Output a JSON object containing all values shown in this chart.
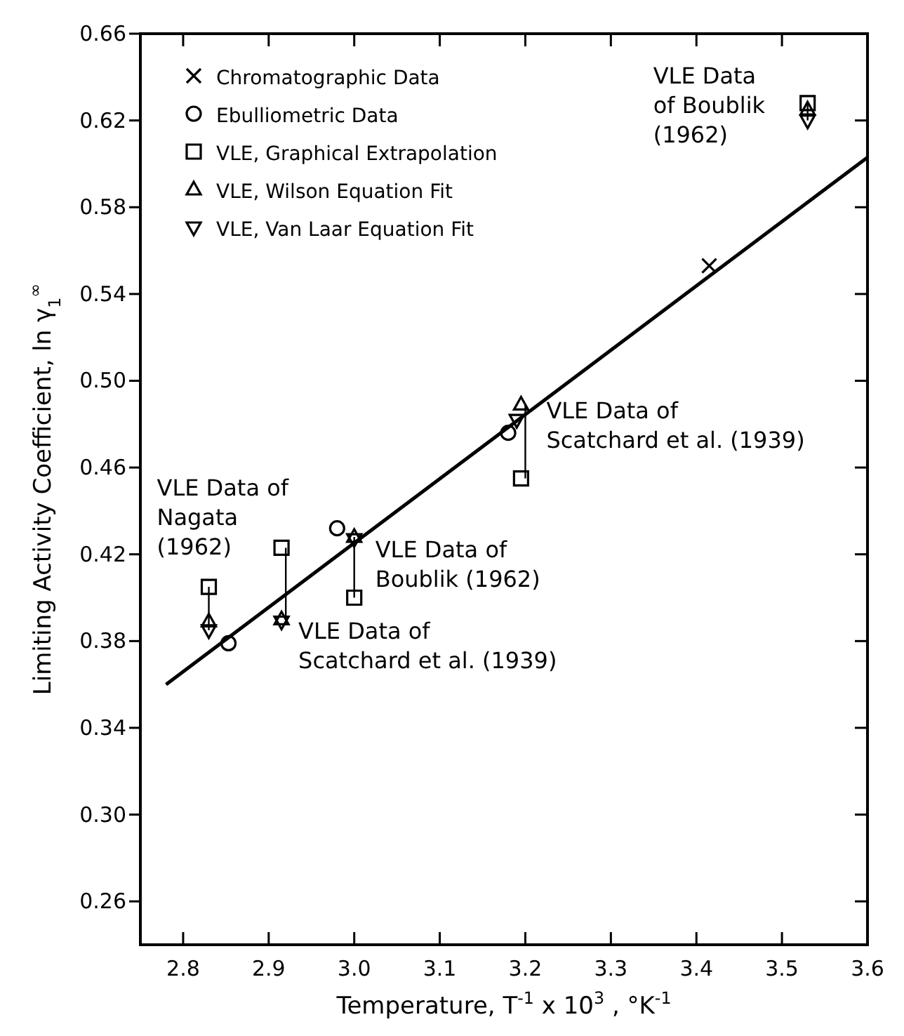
{
  "chart_data": {
    "type": "scatter",
    "xlabel": "Temperature, T$^{-1}$ x 10$^{3}$ , °K$^{-1}$",
    "ylabel": "Limiting Activity Coefficient, ln γ$_{1}$$^{∞}$",
    "xlim": [
      2.75,
      3.6
    ],
    "xticks": [
      {
        "value": 2.8,
        "label": "2.8"
      },
      {
        "value": 2.9,
        "label": "2.9"
      },
      {
        "value": 3.0,
        "label": "3.0"
      },
      {
        "value": 3.1,
        "label": "3.1"
      },
      {
        "value": 3.2,
        "label": "3.2"
      },
      {
        "value": 3.3,
        "label": "3.3"
      },
      {
        "value": 3.4,
        "label": "3.4"
      },
      {
        "value": 3.5,
        "label": "3.5"
      },
      {
        "value": 3.6,
        "label": "3.6"
      }
    ],
    "ylim": [
      0.24,
      0.66
    ],
    "yticks": [
      {
        "value": 0.26,
        "label": "0.26"
      },
      {
        "value": 0.3,
        "label": "0.30"
      },
      {
        "value": 0.34,
        "label": "0.34"
      },
      {
        "value": 0.38,
        "label": "0.38"
      },
      {
        "value": 0.42,
        "label": "0.42"
      },
      {
        "value": 0.46,
        "label": "0.46"
      },
      {
        "value": 0.5,
        "label": "0.50"
      },
      {
        "value": 0.54,
        "label": "0.54"
      },
      {
        "value": 0.58,
        "label": "0.58"
      },
      {
        "value": 0.62,
        "label": "0.62"
      },
      {
        "value": 0.66,
        "label": "0.66"
      }
    ],
    "grid": false,
    "legend": "top left",
    "series": [
      {
        "name": "Chromatographic Data",
        "color": "#000000",
        "marker": "cross",
        "x": [
          3.415
        ],
        "values": [
          0.553
        ]
      },
      {
        "name": "Ebulliometric Data",
        "color": "#000000",
        "marker": "circle",
        "x": [
          2.853,
          2.98,
          3.18
        ],
        "values": [
          0.379,
          0.432,
          0.476
        ]
      },
      {
        "name": "VLE, Graphical Extrapolation",
        "color": "#000000",
        "marker": "square",
        "x": [
          2.83,
          2.915,
          3.0,
          3.195,
          3.53
        ],
        "values": [
          0.405,
          0.423,
          0.4,
          0.455,
          0.628
        ]
      },
      {
        "name": "VLE, Wilson Equation Fit",
        "color": "#000000",
        "marker": "triangle",
        "x": [
          2.83,
          2.915,
          3.0,
          3.195,
          3.53
        ],
        "values": [
          0.389,
          0.39,
          0.428,
          0.489,
          0.625
        ]
      },
      {
        "name": "VLE, Van Laar Equation Fit",
        "color": "#000000",
        "marker": "triangle-down",
        "x": [
          2.83,
          2.915,
          3.0,
          3.19,
          3.53
        ],
        "values": [
          0.385,
          0.389,
          0.427,
          0.482,
          0.62
        ]
      },
      {
        "type": "line",
        "color": "#000000",
        "line_style": "solid",
        "x": [
          2.78,
          3.6
        ],
        "values": [
          0.36,
          0.603
        ]
      }
    ],
    "annotations": [
      {
        "text": "VLE Data\nof Boublik\n(1962)",
        "x": 3.53,
        "y": 0.628
      },
      {
        "text": "VLE Data of\nScatchard et al. (1939)",
        "x": 3.195,
        "y": 0.455
      },
      {
        "text": "VLE Data of\nNagata\n(1962)",
        "x": 2.83,
        "y": 0.405
      },
      {
        "text": "VLE Data of\nBoublik (1962)",
        "x": 3.0,
        "y": 0.4
      },
      {
        "text": "VLE Data of\nScatchard et al. (1939)",
        "x": 2.915,
        "y": 0.423
      }
    ]
  }
}
